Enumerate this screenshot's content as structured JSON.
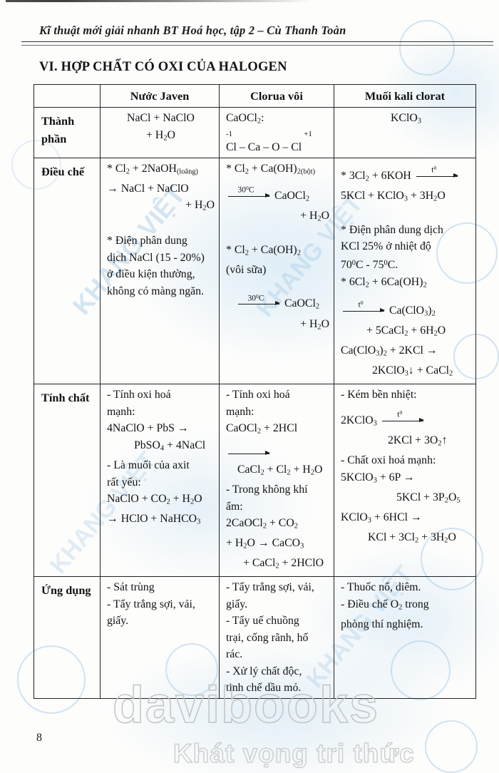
{
  "page": {
    "running_header": "Kĩ thuật mới giải nhanh BT Hoá học, tập 2 – Cù Thanh Toàn",
    "section_title": "VI. HỢP CHẤT CÓ OXI CỦA HALOGEN",
    "page_number": "8"
  },
  "watermark": {
    "brand": "davibooks",
    "slogan": "Khát vọng tri thức",
    "stamp_text": "KHANG VIỆT",
    "stamp_color": "#78afdc",
    "circle_color": "#92bee2"
  },
  "table": {
    "col_headers": [
      "",
      "Nước Javen",
      "Clorua vôi",
      "Muối kali clorat"
    ],
    "rows": [
      {
        "key": "thanhphan",
        "label": "Thành phần",
        "cells": [
          {
            "align": "center",
            "lines": [
              {
                "seg": [
                  {
                    "x": "NaCl + NaClO"
                  }
                ]
              },
              {
                "seg": [
                  {
                    "x": "+ H~2~O"
                  }
                ]
              }
            ]
          },
          {
            "lines": [
              {
                "seg": [
                  {
                    "x": "CaOCl~2~:"
                  }
                ]
              },
              {
                "small": true,
                "seg": [
                  {
                    "x": "-1"
                  },
                  {
                    "gapw": 100
                  },
                  {
                    "x": "+1"
                  }
                ]
              },
              {
                "seg": [
                  {
                    "x": "Cl – Ca – O – Cl"
                  }
                ]
              }
            ]
          },
          {
            "align": "center",
            "lines": [
              {
                "seg": [
                  {
                    "x": "KClO~3~"
                  }
                ]
              }
            ]
          }
        ]
      },
      {
        "key": "dieuche",
        "label": "Điều chế",
        "cells": [
          {
            "lines": [
              {
                "seg": [
                  {
                    "x": "* Cl~2~ + 2NaOH~(loãng)~"
                  }
                ]
              },
              {
                "seg": [
                  {
                    "x": "→ NaCl + NaClO"
                  }
                ]
              },
              {
                "align": "right",
                "seg": [
                  {
                    "x": "+ H~2~O"
                  }
                ]
              },
              {
                "mt": 22,
                "seg": [
                  {
                    "x": "* Điện phân dung"
                  }
                ]
              },
              {
                "seg": [
                  {
                    "x": "dịch NaCl (15 - 20%)"
                  }
                ]
              },
              {
                "seg": [
                  {
                    "x": "ở điều kiện thường,"
                  }
                ]
              },
              {
                "seg": [
                  {
                    "x": "không có màng ngăn."
                  }
                ]
              }
            ]
          },
          {
            "lines": [
              {
                "seg": [
                  {
                    "x": "* Cl~2~ + Ca(OH)~2(bột)~"
                  }
                ]
              },
              {
                "mt": 10,
                "seg": [
                  {
                    "arrow": "30^0^C"
                  },
                  {
                    "x": " CaOCl~2~"
                  }
                ]
              },
              {
                "align": "right",
                "seg": [
                  {
                    "x": "+ H~2~O"
                  }
                ]
              },
              {
                "mt": 20,
                "seg": [
                  {
                    "x": "* Cl~2~ + Ca(OH)~2~"
                  }
                ]
              },
              {
                "seg": [
                  {
                    "x": "(vôi sữa)"
                  }
                ]
              },
              {
                "mt": 24,
                "ind": 14,
                "seg": [
                  {
                    "arrow": "30^0^C"
                  },
                  {
                    "x": "  CaOCl~2~"
                  }
                ]
              },
              {
                "align": "right",
                "seg": [
                  {
                    "x": "+ H~2~O"
                  }
                ]
              }
            ]
          },
          {
            "lines": [
              {
                "mt": 10,
                "seg": [
                  {
                    "x": "* 3Cl~2~ + 6KOH "
                  },
                  {
                    "arrow": "t^0^"
                  }
                ]
              },
              {
                "seg": [
                  {
                    "x": "5KCl + KClO~3~ + 3H~2~O"
                  }
                ]
              },
              {
                "mt": 20,
                "seg": [
                  {
                    "x": "* Điện phân dung dịch"
                  }
                ]
              },
              {
                "seg": [
                  {
                    "x": "KCl 25% ở nhiệt độ"
                  }
                ]
              },
              {
                "seg": [
                  {
                    "x": "70^0^C - 75^0^C."
                  }
                ]
              },
              {
                "seg": [
                  {
                    "x": "* 6Cl~2~ + 6Ca(OH)~2~"
                  }
                ]
              },
              {
                "mt": 12,
                "seg": [
                  {
                    "arrow": "t^0^"
                  },
                  {
                    "x": " Ca(ClO~3~)~2~"
                  }
                ]
              },
              {
                "ind": 36,
                "seg": [
                  {
                    "x": "+ 5CaCl~2~ + 6H~2~O"
                  }
                ]
              },
              {
                "seg": [
                  {
                    "x": "Ca(ClO~3~)~2~ + 2KCl →"
                  }
                ]
              },
              {
                "ind": 44,
                "seg": [
                  {
                    "x": "2KClO~3~↓ + CaCl~2~"
                  }
                ]
              }
            ]
          }
        ]
      },
      {
        "key": "tinhchat",
        "label": "Tính chất",
        "cells": [
          {
            "lines": [
              {
                "seg": [
                  {
                    "x": "- Tính oxi hoá"
                  }
                ]
              },
              {
                "seg": [
                  {
                    "x": "mạnh:"
                  }
                ]
              },
              {
                "seg": [
                  {
                    "x": "4NaClO + PbS →"
                  }
                ]
              },
              {
                "ind": 38,
                "seg": [
                  {
                    "x": "PbSO~4~ + 4NaCl"
                  }
                ]
              },
              {
                "seg": [
                  {
                    "x": "- Là muối của axit"
                  }
                ]
              },
              {
                "seg": [
                  {
                    "x": "rất yếu:"
                  }
                ]
              },
              {
                "seg": [
                  {
                    "x": "NaClO + CO~2~ + H~2~O"
                  }
                ]
              },
              {
                "seg": [
                  {
                    "x": "→ HClO + NaHCO~3~"
                  }
                ]
              }
            ]
          },
          {
            "lines": [
              {
                "seg": [
                  {
                    "x": "- Tính oxi hoá"
                  }
                ]
              },
              {
                "seg": [
                  {
                    "x": "mạnh:"
                  }
                ]
              },
              {
                "seg": [
                  {
                    "x": "CaOCl~2~ + 2HCl"
                  }
                ]
              },
              {
                "mt": 6,
                "seg": [
                  {
                    "arrow": ""
                  }
                ]
              },
              {
                "ind": 16,
                "seg": [
                  {
                    "x": "CaCl~2~ + Cl~2~ + H~2~O"
                  }
                ]
              },
              {
                "seg": [
                  {
                    "x": "- Trong không khí"
                  }
                ]
              },
              {
                "seg": [
                  {
                    "x": "ẩm:"
                  }
                ]
              },
              {
                "seg": [
                  {
                    "x": "2CaOCl~2~ + CO~2~"
                  }
                ]
              },
              {
                "seg": [
                  {
                    "x": "+ H~2~O → CaCO~3~"
                  }
                ]
              },
              {
                "ind": 24,
                "seg": [
                  {
                    "x": "+ CaCl~2~ + 2HClO"
                  }
                ]
              }
            ]
          },
          {
            "lines": [
              {
                "seg": [
                  {
                    "x": "- Kém bền nhiệt:"
                  }
                ]
              },
              {
                "mt": 12,
                "seg": [
                  {
                    "x": "2KClO~3~ "
                  },
                  {
                    "arrow": "t^0^"
                  }
                ]
              },
              {
                "ind": 66,
                "seg": [
                  {
                    "x": "2KCl + 3O~2~↑"
                  }
                ]
              },
              {
                "seg": [
                  {
                    "x": "- Chất oxi hoá mạnh:"
                  }
                ]
              },
              {
                "seg": [
                  {
                    "x": "5KClO~3~ + 6P →"
                  }
                ]
              },
              {
                "ind": 78,
                "seg": [
                  {
                    "x": "5KCl + 3P~2~O~5~"
                  }
                ]
              },
              {
                "seg": [
                  {
                    "x": "KClO~3~ + 6HCl →"
                  }
                ]
              },
              {
                "ind": 38,
                "seg": [
                  {
                    "x": "KCl + 3Cl~2~ + 3H~2~O"
                  }
                ]
              }
            ]
          }
        ]
      },
      {
        "key": "ungdung",
        "label": "Ứng dụng",
        "cells": [
          {
            "lines": [
              {
                "seg": [
                  {
                    "x": "- Sát trùng"
                  }
                ]
              },
              {
                "seg": [
                  {
                    "x": "- Tẩy trắng sợi, vải,"
                  }
                ]
              },
              {
                "seg": [
                  {
                    "x": "giấy."
                  }
                ]
              }
            ]
          },
          {
            "lines": [
              {
                "seg": [
                  {
                    "x": "- Tẩy trắng sợi, vải,"
                  }
                ]
              },
              {
                "seg": [
                  {
                    "x": "giấy."
                  }
                ]
              },
              {
                "seg": [
                  {
                    "x": "- Tẩy uế chuồng"
                  }
                ]
              },
              {
                "seg": [
                  {
                    "x": "trại, cống rãnh, hố"
                  }
                ]
              },
              {
                "seg": [
                  {
                    "x": "rác."
                  }
                ]
              },
              {
                "seg": [
                  {
                    "x": "- Xử lý chất độc,"
                  }
                ]
              },
              {
                "seg": [
                  {
                    "x": "tinh chế dầu mỏ."
                  }
                ]
              }
            ]
          },
          {
            "lines": [
              {
                "seg": [
                  {
                    "x": "- Thuốc nổ, diêm."
                  }
                ]
              },
              {
                "seg": [
                  {
                    "x": "- Điều chế O~2~ trong"
                  }
                ]
              },
              {
                "seg": [
                  {
                    "x": "phòng thí nghiệm."
                  }
                ]
              }
            ]
          }
        ]
      }
    ]
  }
}
